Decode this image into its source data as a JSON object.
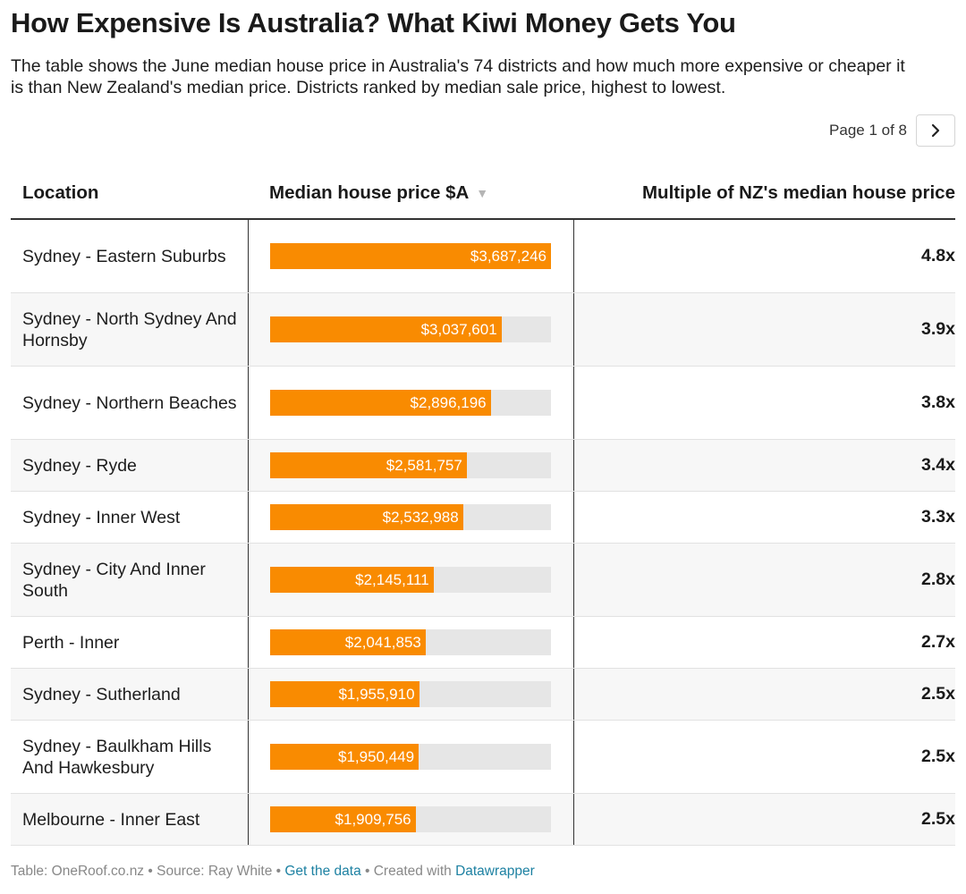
{
  "title": "How Expensive Is Australia? What Kiwi Money Gets You",
  "description": "The table shows the June median house price in Australia's 74 districts and how much more expensive or cheaper it is than New Zealand's median price. Districts ranked by median sale price, highest to lowest.",
  "pager": {
    "label": "Page 1 of 8",
    "next_icon": "chevron-right-icon"
  },
  "colors": {
    "bar": "#f98b01",
    "track": "#e6e6e6",
    "link": "#1d81a2"
  },
  "chart_data": {
    "type": "table",
    "columns": [
      "Location",
      "Median house price $A",
      "Multiple of NZ's median house price"
    ],
    "sort": {
      "column": "Median house price $A",
      "direction": "descending"
    },
    "bar_max": 3687246,
    "rows": [
      {
        "location": "Sydney - Eastern Suburbs",
        "price": 3687246,
        "price_label": "$3,687,246",
        "multiple": "4.8x"
      },
      {
        "location": "Sydney - North Sydney And Hornsby",
        "price": 3037601,
        "price_label": "$3,037,601",
        "multiple": "3.9x"
      },
      {
        "location": "Sydney - Northern Beaches",
        "price": 2896196,
        "price_label": "$2,896,196",
        "multiple": "3.8x"
      },
      {
        "location": "Sydney - Ryde",
        "price": 2581757,
        "price_label": "$2,581,757",
        "multiple": "3.4x"
      },
      {
        "location": "Sydney - Inner West",
        "price": 2532988,
        "price_label": "$2,532,988",
        "multiple": "3.3x"
      },
      {
        "location": "Sydney - City And Inner South",
        "price": 2145111,
        "price_label": "$2,145,111",
        "multiple": "2.8x"
      },
      {
        "location": "Perth - Inner",
        "price": 2041853,
        "price_label": "$2,041,853",
        "multiple": "2.7x"
      },
      {
        "location": "Sydney - Sutherland",
        "price": 1955910,
        "price_label": "$1,955,910",
        "multiple": "2.5x"
      },
      {
        "location": "Sydney - Baulkham Hills And Hawkesbury",
        "price": 1950449,
        "price_label": "$1,950,449",
        "multiple": "2.5x"
      },
      {
        "location": "Melbourne - Inner East",
        "price": 1909756,
        "price_label": "$1,909,756",
        "multiple": "2.5x"
      }
    ]
  },
  "footer": {
    "table_credit": "Table: OneRoof.co.nz",
    "sep": " • ",
    "source": "Source: Ray White",
    "get_data": "Get the data",
    "created_with": "Created with",
    "datawrapper": "Datawrapper"
  }
}
